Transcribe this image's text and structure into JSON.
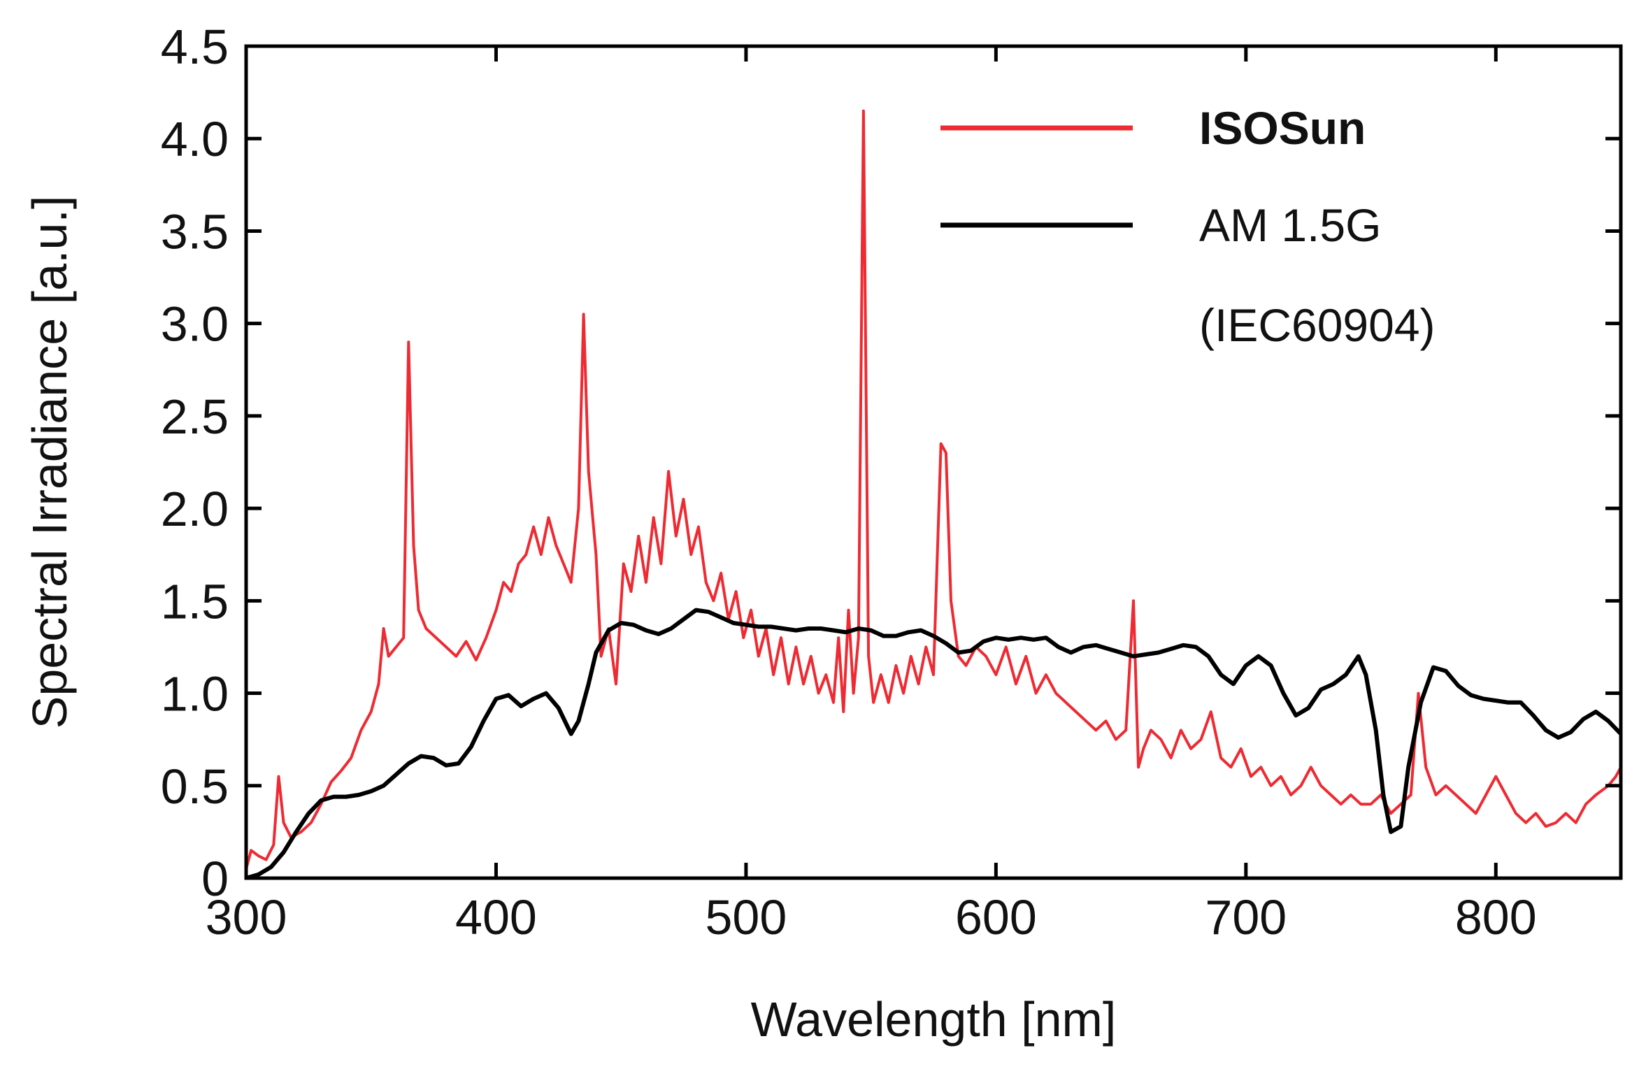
{
  "chart_data": {
    "type": "line",
    "title": "",
    "xlabel": "Wavelength [nm]",
    "ylabel": "Spectral Irradiance [a.u.]",
    "xlim": [
      300,
      850
    ],
    "ylim": [
      0,
      4.5
    ],
    "x_ticks": [
      300,
      400,
      500,
      600,
      700,
      800
    ],
    "x_tick_labels": [
      "300",
      "400",
      "500",
      "600",
      "700",
      "800"
    ],
    "y_ticks": [
      0,
      0.5,
      1.0,
      1.5,
      2.0,
      2.5,
      3.0,
      3.5,
      4.0,
      4.5
    ],
    "y_tick_labels": [
      "0",
      "0.5",
      "1.0",
      "1.5",
      "2.0",
      "2.5",
      "3.0",
      "3.5",
      "4.0",
      "4.5"
    ],
    "grid": false,
    "legend_position": "top-right",
    "series": [
      {
        "name": "ISOSun",
        "legend_label": "ISOSun",
        "color": "#ee2a32",
        "points": [
          [
            300,
            0.05
          ],
          [
            302,
            0.15
          ],
          [
            305,
            0.12
          ],
          [
            308,
            0.1
          ],
          [
            311,
            0.18
          ],
          [
            313,
            0.55
          ],
          [
            315,
            0.3
          ],
          [
            318,
            0.22
          ],
          [
            322,
            0.25
          ],
          [
            326,
            0.3
          ],
          [
            330,
            0.4
          ],
          [
            334,
            0.52
          ],
          [
            338,
            0.58
          ],
          [
            342,
            0.65
          ],
          [
            346,
            0.8
          ],
          [
            350,
            0.9
          ],
          [
            353,
            1.05
          ],
          [
            355,
            1.35
          ],
          [
            357,
            1.2
          ],
          [
            360,
            1.25
          ],
          [
            363,
            1.3
          ],
          [
            365,
            2.9
          ],
          [
            367,
            1.8
          ],
          [
            369,
            1.45
          ],
          [
            372,
            1.35
          ],
          [
            376,
            1.3
          ],
          [
            380,
            1.25
          ],
          [
            384,
            1.2
          ],
          [
            388,
            1.28
          ],
          [
            392,
            1.18
          ],
          [
            396,
            1.3
          ],
          [
            400,
            1.45
          ],
          [
            403,
            1.6
          ],
          [
            406,
            1.55
          ],
          [
            409,
            1.7
          ],
          [
            412,
            1.75
          ],
          [
            415,
            1.9
          ],
          [
            418,
            1.75
          ],
          [
            421,
            1.95
          ],
          [
            424,
            1.8
          ],
          [
            427,
            1.7
          ],
          [
            430,
            1.6
          ],
          [
            433,
            2.0
          ],
          [
            435,
            3.05
          ],
          [
            437,
            2.2
          ],
          [
            440,
            1.75
          ],
          [
            442,
            1.2
          ],
          [
            445,
            1.35
          ],
          [
            448,
            1.05
          ],
          [
            451,
            1.7
          ],
          [
            454,
            1.55
          ],
          [
            457,
            1.85
          ],
          [
            460,
            1.6
          ],
          [
            463,
            1.95
          ],
          [
            466,
            1.7
          ],
          [
            469,
            2.2
          ],
          [
            472,
            1.85
          ],
          [
            475,
            2.05
          ],
          [
            478,
            1.75
          ],
          [
            481,
            1.9
          ],
          [
            484,
            1.6
          ],
          [
            487,
            1.5
          ],
          [
            490,
            1.65
          ],
          [
            493,
            1.4
          ],
          [
            496,
            1.55
          ],
          [
            499,
            1.3
          ],
          [
            502,
            1.45
          ],
          [
            505,
            1.2
          ],
          [
            508,
            1.35
          ],
          [
            511,
            1.1
          ],
          [
            514,
            1.3
          ],
          [
            517,
            1.05
          ],
          [
            520,
            1.25
          ],
          [
            523,
            1.05
          ],
          [
            526,
            1.2
          ],
          [
            529,
            1.0
          ],
          [
            532,
            1.1
          ],
          [
            535,
            0.95
          ],
          [
            537,
            1.3
          ],
          [
            539,
            0.9
          ],
          [
            541,
            1.45
          ],
          [
            543,
            1.0
          ],
          [
            545,
            1.3
          ],
          [
            547,
            4.15
          ],
          [
            549,
            1.2
          ],
          [
            551,
            0.95
          ],
          [
            554,
            1.1
          ],
          [
            557,
            0.95
          ],
          [
            560,
            1.15
          ],
          [
            563,
            1.0
          ],
          [
            566,
            1.2
          ],
          [
            569,
            1.05
          ],
          [
            572,
            1.25
          ],
          [
            575,
            1.1
          ],
          [
            578,
            2.35
          ],
          [
            580,
            2.3
          ],
          [
            582,
            1.5
          ],
          [
            585,
            1.2
          ],
          [
            588,
            1.15
          ],
          [
            592,
            1.25
          ],
          [
            596,
            1.2
          ],
          [
            600,
            1.1
          ],
          [
            604,
            1.25
          ],
          [
            608,
            1.05
          ],
          [
            612,
            1.2
          ],
          [
            616,
            1.0
          ],
          [
            620,
            1.1
          ],
          [
            624,
            1.0
          ],
          [
            628,
            0.95
          ],
          [
            632,
            0.9
          ],
          [
            636,
            0.85
          ],
          [
            640,
            0.8
          ],
          [
            644,
            0.85
          ],
          [
            648,
            0.75
          ],
          [
            652,
            0.8
          ],
          [
            655,
            1.5
          ],
          [
            657,
            0.6
          ],
          [
            659,
            0.7
          ],
          [
            662,
            0.8
          ],
          [
            666,
            0.75
          ],
          [
            670,
            0.65
          ],
          [
            674,
            0.8
          ],
          [
            678,
            0.7
          ],
          [
            682,
            0.75
          ],
          [
            686,
            0.9
          ],
          [
            690,
            0.65
          ],
          [
            694,
            0.6
          ],
          [
            698,
            0.7
          ],
          [
            702,
            0.55
          ],
          [
            706,
            0.6
          ],
          [
            710,
            0.5
          ],
          [
            714,
            0.55
          ],
          [
            718,
            0.45
          ],
          [
            722,
            0.5
          ],
          [
            726,
            0.6
          ],
          [
            730,
            0.5
          ],
          [
            734,
            0.45
          ],
          [
            738,
            0.4
          ],
          [
            742,
            0.45
          ],
          [
            746,
            0.4
          ],
          [
            750,
            0.4
          ],
          [
            754,
            0.45
          ],
          [
            758,
            0.35
          ],
          [
            762,
            0.4
          ],
          [
            766,
            0.45
          ],
          [
            769,
            1.0
          ],
          [
            772,
            0.6
          ],
          [
            776,
            0.45
          ],
          [
            780,
            0.5
          ],
          [
            784,
            0.45
          ],
          [
            788,
            0.4
          ],
          [
            792,
            0.35
          ],
          [
            796,
            0.45
          ],
          [
            800,
            0.55
          ],
          [
            804,
            0.45
          ],
          [
            808,
            0.35
          ],
          [
            812,
            0.3
          ],
          [
            816,
            0.35
          ],
          [
            820,
            0.28
          ],
          [
            824,
            0.3
          ],
          [
            828,
            0.35
          ],
          [
            832,
            0.3
          ],
          [
            836,
            0.4
          ],
          [
            840,
            0.45
          ],
          [
            845,
            0.5
          ],
          [
            848,
            0.55
          ],
          [
            850,
            0.6
          ]
        ]
      },
      {
        "name": "AM 1.5G (IEC60904)",
        "legend_label": "AM 1.5G",
        "legend_sublabel": "(IEC60904)",
        "color": "#000000",
        "points": [
          [
            300,
            0.0
          ],
          [
            305,
            0.02
          ],
          [
            310,
            0.06
          ],
          [
            315,
            0.14
          ],
          [
            320,
            0.25
          ],
          [
            325,
            0.35
          ],
          [
            330,
            0.42
          ],
          [
            335,
            0.44
          ],
          [
            340,
            0.44
          ],
          [
            345,
            0.45
          ],
          [
            350,
            0.47
          ],
          [
            355,
            0.5
          ],
          [
            360,
            0.56
          ],
          [
            365,
            0.62
          ],
          [
            370,
            0.66
          ],
          [
            375,
            0.65
          ],
          [
            380,
            0.61
          ],
          [
            385,
            0.62
          ],
          [
            390,
            0.71
          ],
          [
            395,
            0.85
          ],
          [
            400,
            0.97
          ],
          [
            405,
            0.99
          ],
          [
            410,
            0.93
          ],
          [
            415,
            0.97
          ],
          [
            420,
            1.0
          ],
          [
            425,
            0.92
          ],
          [
            430,
            0.78
          ],
          [
            433,
            0.85
          ],
          [
            437,
            1.05
          ],
          [
            440,
            1.22
          ],
          [
            445,
            1.34
          ],
          [
            450,
            1.38
          ],
          [
            455,
            1.37
          ],
          [
            460,
            1.34
          ],
          [
            465,
            1.32
          ],
          [
            470,
            1.35
          ],
          [
            475,
            1.4
          ],
          [
            480,
            1.45
          ],
          [
            485,
            1.44
          ],
          [
            490,
            1.41
          ],
          [
            495,
            1.38
          ],
          [
            500,
            1.37
          ],
          [
            505,
            1.36
          ],
          [
            510,
            1.36
          ],
          [
            515,
            1.35
          ],
          [
            520,
            1.34
          ],
          [
            525,
            1.35
          ],
          [
            530,
            1.35
          ],
          [
            535,
            1.34
          ],
          [
            540,
            1.33
          ],
          [
            545,
            1.35
          ],
          [
            550,
            1.34
          ],
          [
            555,
            1.31
          ],
          [
            560,
            1.31
          ],
          [
            565,
            1.33
          ],
          [
            570,
            1.34
          ],
          [
            575,
            1.31
          ],
          [
            580,
            1.27
          ],
          [
            585,
            1.22
          ],
          [
            590,
            1.23
          ],
          [
            595,
            1.28
          ],
          [
            600,
            1.3
          ],
          [
            605,
            1.29
          ],
          [
            610,
            1.3
          ],
          [
            615,
            1.29
          ],
          [
            620,
            1.3
          ],
          [
            625,
            1.25
          ],
          [
            630,
            1.22
          ],
          [
            635,
            1.25
          ],
          [
            640,
            1.26
          ],
          [
            645,
            1.24
          ],
          [
            650,
            1.22
          ],
          [
            655,
            1.2
          ],
          [
            660,
            1.21
          ],
          [
            665,
            1.22
          ],
          [
            670,
            1.24
          ],
          [
            675,
            1.26
          ],
          [
            680,
            1.25
          ],
          [
            685,
            1.2
          ],
          [
            690,
            1.1
          ],
          [
            695,
            1.05
          ],
          [
            700,
            1.15
          ],
          [
            705,
            1.2
          ],
          [
            710,
            1.15
          ],
          [
            715,
            1.0
          ],
          [
            720,
            0.88
          ],
          [
            725,
            0.92
          ],
          [
            730,
            1.02
          ],
          [
            735,
            1.05
          ],
          [
            740,
            1.1
          ],
          [
            745,
            1.2
          ],
          [
            748,
            1.1
          ],
          [
            752,
            0.8
          ],
          [
            755,
            0.45
          ],
          [
            758,
            0.25
          ],
          [
            762,
            0.28
          ],
          [
            765,
            0.6
          ],
          [
            770,
            0.95
          ],
          [
            775,
            1.14
          ],
          [
            780,
            1.12
          ],
          [
            785,
            1.04
          ],
          [
            790,
            0.99
          ],
          [
            795,
            0.97
          ],
          [
            800,
            0.96
          ],
          [
            805,
            0.95
          ],
          [
            810,
            0.95
          ],
          [
            815,
            0.88
          ],
          [
            820,
            0.8
          ],
          [
            825,
            0.76
          ],
          [
            830,
            0.79
          ],
          [
            835,
            0.86
          ],
          [
            840,
            0.9
          ],
          [
            845,
            0.85
          ],
          [
            850,
            0.78
          ]
        ]
      }
    ]
  }
}
